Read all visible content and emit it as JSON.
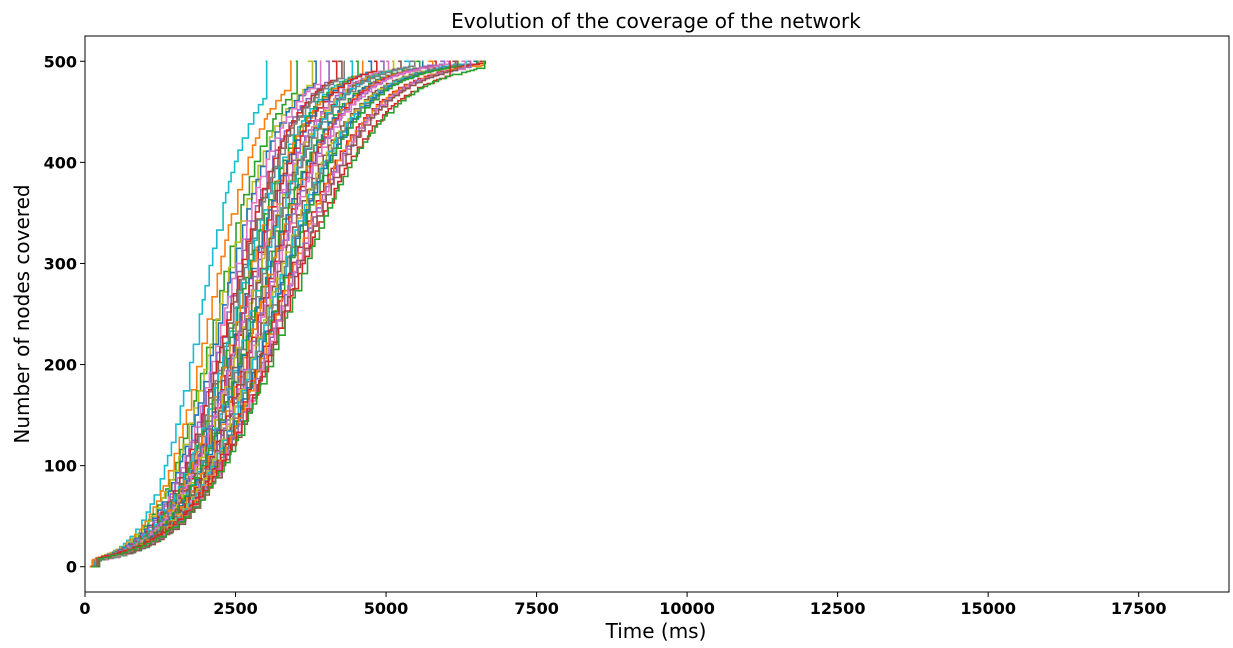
{
  "chart_data": {
    "type": "line",
    "title": "Evolution of the coverage of the network",
    "xlabel": "Time (ms)",
    "ylabel": "Number of nodes covered",
    "xlim": [
      0,
      19000
    ],
    "ylim": [
      -25,
      525
    ],
    "xticks": [
      0,
      2500,
      5000,
      7500,
      10000,
      12500,
      15000,
      17500
    ],
    "yticks": [
      0,
      100,
      200,
      300,
      400,
      500
    ],
    "grid": false,
    "legend": "none",
    "step": true,
    "total_nodes": 500,
    "curve_model": "logistic",
    "series_count": 40,
    "series": [
      {
        "t_half": 1900,
        "k": 0.0024,
        "color": "#17becf"
      },
      {
        "t_half": 2050,
        "k": 0.0022,
        "color": "#ff7f0e"
      },
      {
        "t_half": 2150,
        "k": 0.0021,
        "color": "#2ca02c"
      },
      {
        "t_half": 2200,
        "k": 0.002,
        "color": "#bcbd22"
      },
      {
        "t_half": 2250,
        "k": 0.002,
        "color": "#1f77b4"
      },
      {
        "t_half": 2300,
        "k": 0.002,
        "color": "#e377c2"
      },
      {
        "t_half": 2350,
        "k": 0.0019,
        "color": "#9467bd"
      },
      {
        "t_half": 2380,
        "k": 0.0019,
        "color": "#d62728"
      },
      {
        "t_half": 2420,
        "k": 0.0019,
        "color": "#8c564b"
      },
      {
        "t_half": 2450,
        "k": 0.0019,
        "color": "#7f7f7f"
      },
      {
        "t_half": 2480,
        "k": 0.0018,
        "color": "#17becf"
      },
      {
        "t_half": 2510,
        "k": 0.0018,
        "color": "#2ca02c"
      },
      {
        "t_half": 2540,
        "k": 0.0018,
        "color": "#ff7f0e"
      },
      {
        "t_half": 2570,
        "k": 0.0018,
        "color": "#1f77b4"
      },
      {
        "t_half": 2600,
        "k": 0.0018,
        "color": "#d62728"
      },
      {
        "t_half": 2620,
        "k": 0.0017,
        "color": "#9467bd"
      },
      {
        "t_half": 2650,
        "k": 0.0017,
        "color": "#e377c2"
      },
      {
        "t_half": 2680,
        "k": 0.0017,
        "color": "#bcbd22"
      },
      {
        "t_half": 2700,
        "k": 0.0017,
        "color": "#8c564b"
      },
      {
        "t_half": 2730,
        "k": 0.0017,
        "color": "#17becf"
      },
      {
        "t_half": 2760,
        "k": 0.0017,
        "color": "#7f7f7f"
      },
      {
        "t_half": 2790,
        "k": 0.0016,
        "color": "#2ca02c"
      },
      {
        "t_half": 2820,
        "k": 0.0016,
        "color": "#1f77b4"
      },
      {
        "t_half": 2850,
        "k": 0.0016,
        "color": "#ff7f0e"
      },
      {
        "t_half": 2880,
        "k": 0.0016,
        "color": "#d62728"
      },
      {
        "t_half": 2910,
        "k": 0.0016,
        "color": "#9467bd"
      },
      {
        "t_half": 2940,
        "k": 0.0016,
        "color": "#e377c2"
      },
      {
        "t_half": 2970,
        "k": 0.0015,
        "color": "#8c564b"
      },
      {
        "t_half": 3000,
        "k": 0.0015,
        "color": "#bcbd22"
      },
      {
        "t_half": 3030,
        "k": 0.0015,
        "color": "#17becf"
      },
      {
        "t_half": 3060,
        "k": 0.0015,
        "color": "#7f7f7f"
      },
      {
        "t_half": 3090,
        "k": 0.0015,
        "color": "#1f77b4"
      },
      {
        "t_half": 3120,
        "k": 0.0015,
        "color": "#2ca02c"
      },
      {
        "t_half": 3150,
        "k": 0.0014,
        "color": "#d62728"
      },
      {
        "t_half": 3180,
        "k": 0.0014,
        "color": "#ff7f0e"
      },
      {
        "t_half": 3210,
        "k": 0.0014,
        "color": "#9467bd"
      },
      {
        "t_half": 3240,
        "k": 0.0014,
        "color": "#e377c2"
      },
      {
        "t_half": 3270,
        "k": 0.0014,
        "color": "#8c564b"
      },
      {
        "t_half": 3300,
        "k": 0.0013,
        "color": "#d62728"
      },
      {
        "t_half": 3350,
        "k": 0.0013,
        "color": "#2ca02c"
      }
    ],
    "end_times": [
      3000,
      3400,
      3500,
      3700,
      3800,
      3900,
      4000,
      4100,
      4200,
      4300,
      4400,
      4500,
      4600,
      4700,
      4800,
      4900,
      5000,
      5100,
      5200,
      5300,
      5400,
      5500,
      5600,
      5700,
      5800,
      5900,
      6000,
      6100,
      6200,
      6300,
      6400,
      6450,
      6500,
      6550,
      6600,
      6350,
      6250,
      6150,
      6050,
      6600
    ]
  }
}
